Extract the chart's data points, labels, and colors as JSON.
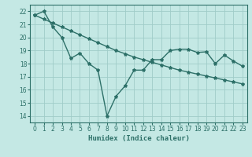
{
  "xlabel": "Humidex (Indice chaleur)",
  "background_color": "#c4e8e4",
  "grid_color": "#a0ccc8",
  "line_color": "#2d7068",
  "xlim": [
    -0.5,
    23.5
  ],
  "ylim": [
    13.5,
    22.5
  ],
  "yticks": [
    14,
    15,
    16,
    17,
    18,
    19,
    20,
    21,
    22
  ],
  "xticks": [
    0,
    1,
    2,
    3,
    4,
    5,
    6,
    7,
    8,
    9,
    10,
    11,
    12,
    13,
    14,
    15,
    16,
    17,
    18,
    19,
    20,
    21,
    22,
    23
  ],
  "line1_x": [
    0,
    1,
    2,
    3,
    4,
    5,
    6,
    7,
    8,
    9,
    10,
    11,
    12,
    13,
    14,
    15,
    16,
    17,
    18,
    19,
    20,
    21,
    22,
    23
  ],
  "line1_y": [
    21.7,
    22.0,
    20.8,
    20.0,
    18.4,
    18.8,
    18.0,
    17.5,
    14.0,
    15.5,
    16.3,
    17.5,
    17.5,
    18.3,
    18.3,
    19.0,
    19.1,
    19.1,
    18.85,
    18.9,
    18.0,
    18.65,
    18.2,
    17.8
  ],
  "line2_x": [
    0,
    1,
    2,
    3,
    4,
    5,
    6,
    7,
    8,
    9,
    10,
    11,
    12,
    13,
    14,
    15,
    16,
    17,
    18,
    19,
    20,
    21,
    22,
    23
  ],
  "line2_y": [
    21.7,
    21.4,
    21.1,
    20.8,
    20.5,
    20.2,
    19.9,
    19.6,
    19.3,
    19.0,
    18.75,
    18.5,
    18.3,
    18.1,
    17.9,
    17.7,
    17.5,
    17.35,
    17.2,
    17.05,
    16.9,
    16.75,
    16.6,
    16.45
  ],
  "marker": "*",
  "marker_size": 3,
  "line_width": 1.0,
  "tick_fontsize": 5.5,
  "xlabel_fontsize": 6.5
}
